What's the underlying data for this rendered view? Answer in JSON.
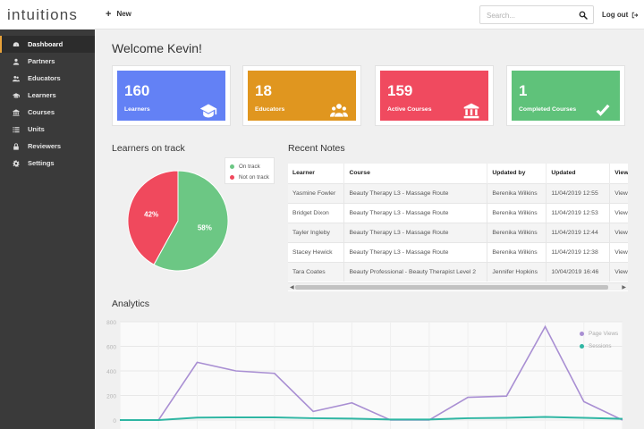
{
  "app": {
    "logo": "intuitions"
  },
  "sidebar": {
    "items": [
      {
        "label": "Dashboard",
        "icon": "dashboard-icon",
        "active": true
      },
      {
        "label": "Partners",
        "icon": "user-icon"
      },
      {
        "label": "Educators",
        "icon": "users-icon"
      },
      {
        "label": "Learners",
        "icon": "graduation-icon"
      },
      {
        "label": "Courses",
        "icon": "institution-icon"
      },
      {
        "label": "Units",
        "icon": "list-icon"
      },
      {
        "label": "Reviewers",
        "icon": "lock-icon"
      },
      {
        "label": "Settings",
        "icon": "gear-icon"
      }
    ]
  },
  "topbar": {
    "new_label": "New",
    "search_placeholder": "Search...",
    "logout_label": "Log out"
  },
  "welcome": "Welcome Kevin!",
  "cards": [
    {
      "value": "160",
      "label": "Learners",
      "color": "#6381f5",
      "icon": "graduation-cap-icon"
    },
    {
      "value": "18",
      "label": "Educators",
      "color": "#e0961f",
      "icon": "users-icon"
    },
    {
      "value": "159",
      "label": "Active Courses",
      "color": "#f04a5f",
      "icon": "institution-icon"
    },
    {
      "value": "1",
      "label": "Completed Courses",
      "color": "#5fc27a",
      "icon": "check-icon"
    }
  ],
  "pie": {
    "title": "Learners on track",
    "chart_data": {
      "type": "pie",
      "series": [
        {
          "name": "On track",
          "value": 58,
          "label": "58%",
          "color": "#6cc784"
        },
        {
          "name": "Not on track",
          "value": 42,
          "label": "42%",
          "color": "#f0495d"
        }
      ]
    }
  },
  "notes": {
    "title": "Recent Notes",
    "columns": [
      "Learner",
      "Course",
      "Updated by",
      "Updated",
      "View"
    ],
    "rows": [
      [
        "Yasmine Fowler",
        "Beauty Therapy L3 - Massage Route",
        "Berenika Wilkins",
        "11/04/2019 12:55",
        "View"
      ],
      [
        "Bridget Dixon",
        "Beauty Therapy L3 - Massage Route",
        "Berenika Wilkins",
        "11/04/2019 12:53",
        "View"
      ],
      [
        "Tayler Ingleby",
        "Beauty Therapy L3 - Massage Route",
        "Berenika Wilkins",
        "11/04/2019 12:44",
        "View"
      ],
      [
        "Stacey Hewick",
        "Beauty Therapy L3 - Massage Route",
        "Berenika Wilkins",
        "11/04/2019 12:38",
        "View"
      ],
      [
        "Tara Coates",
        "Beauty Professional - Beauty Therapist Level 2",
        "Jennifer Hopkins",
        "10/04/2019 16:46",
        "View"
      ]
    ]
  },
  "analytics": {
    "title": "Analytics",
    "chart_data": {
      "type": "line",
      "ylim": [
        0,
        800
      ],
      "yticks": [
        0,
        200,
        400,
        600,
        800
      ],
      "x": [
        0,
        1,
        2,
        3,
        4,
        5,
        6,
        7,
        8,
        9,
        10,
        11,
        12,
        13
      ],
      "series": [
        {
          "name": "Page Views",
          "color": "#a98fd3",
          "values": [
            0,
            0,
            470,
            400,
            380,
            70,
            140,
            0,
            0,
            185,
            195,
            760,
            150,
            0
          ]
        },
        {
          "name": "Sessions",
          "color": "#2fb6a3",
          "values": [
            0,
            0,
            20,
            22,
            22,
            15,
            12,
            5,
            5,
            15,
            18,
            25,
            18,
            10
          ]
        }
      ]
    }
  }
}
